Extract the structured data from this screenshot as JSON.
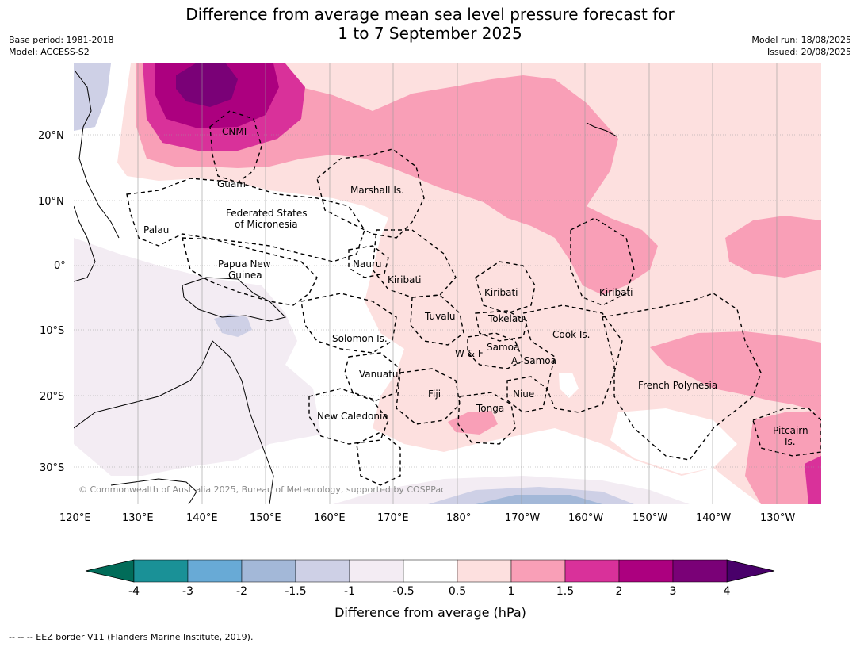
{
  "title_line1": "Difference from average mean sea level pressure forecast for",
  "title_line2": "1 to 7 September 2025",
  "meta_left": [
    "Base period: 1981-2018",
    "Model: ACCESS-S2"
  ],
  "meta_right": [
    "Model run: 18/08/2025",
    "Issued: 20/08/2025"
  ],
  "lat_labels": [
    "20°N",
    "10°N",
    "0°",
    "10°S",
    "20°S",
    "30°S"
  ],
  "lon_labels": [
    "120°E",
    "130°E",
    "140°E",
    "150°E",
    "160°E",
    "170°E",
    "180°",
    "170°W",
    "160°W",
    "150°W",
    "140°W",
    "130°W"
  ],
  "regions": [
    "CNMI",
    "Guam",
    "Marshall Is.",
    "Federated States",
    "of Micronesia",
    "Palau",
    "Papua New",
    "Guinea",
    "Nauru",
    "Kiribati",
    "Kiribati",
    "Kiribati",
    "Tuvalu",
    "Tokelau",
    "Cook Is.",
    "Solomon Is.",
    "W & F",
    "Samoa",
    "A. Samoa",
    "Vanuatu",
    "Fiji",
    "Niue",
    "Tonga",
    "New Caledonia",
    "French Polynesia",
    "Pitcairn",
    "Is."
  ],
  "copyright": "© Commonwealth of Australia 2025, Bureau of Meteorology, supported by COSPPac",
  "colorbar": {
    "ticks": [
      "-4",
      "-3",
      "-2",
      "-1.5",
      "-1",
      "-0.5",
      "0.5",
      "1",
      "1.5",
      "2",
      "3",
      "4"
    ],
    "colors": [
      "#1a9197",
      "#68aad6",
      "#a3b8d8",
      "#ced0e6",
      "#f3ecf3",
      "#ffffff",
      "#fde0df",
      "#f99fb7",
      "#d9319a",
      "#ac007f",
      "#7a0177"
    ],
    "under_color": "#016c59",
    "over_color": "#49006a",
    "label": "Difference from average (hPa)"
  },
  "footer": "--  --  -- EEZ border V11 (Flanders Marine Institute, 2019)."
}
